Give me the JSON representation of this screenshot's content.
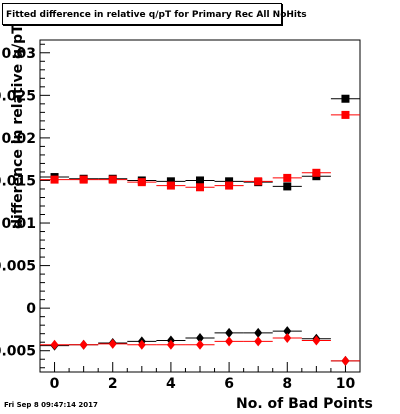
{
  "title": "Fitted difference in relative q/pT for Primary Rec All NoHits",
  "timestamp": "Fri Sep  8 09:47:14 2017",
  "chart_data": {
    "type": "scatter",
    "title": "Fitted difference in relative q/pT for Primary Rec All NoHits",
    "xlabel": "No. of Bad Points",
    "ylabel": "difference in relative q/pT",
    "xlim": [
      -0.5,
      10.5
    ],
    "ylim": [
      -0.0075,
      0.0315
    ],
    "x_ticks": [
      "0",
      "2",
      "4",
      "6",
      "8",
      "10"
    ],
    "y_ticks": [
      "-0.005",
      "0",
      "0.005",
      "0.01",
      "0.015",
      "0.02",
      "0.025",
      "0.03"
    ],
    "grid": false,
    "legend": "none",
    "series": [
      {
        "marker": "square",
        "color": "#000000",
        "x": [
          0,
          1,
          2,
          3,
          4,
          5,
          6,
          7,
          8,
          9,
          10
        ],
        "y": [
          0.0154,
          0.0152,
          0.0152,
          0.015,
          0.0149,
          0.015,
          0.0149,
          0.0148,
          0.0143,
          0.0155,
          0.0246
        ]
      },
      {
        "marker": "square",
        "color": "#ff0000",
        "x": [
          0,
          1,
          2,
          3,
          4,
          5,
          6,
          7,
          8,
          9,
          10
        ],
        "y": [
          0.0151,
          0.0151,
          0.0151,
          0.0148,
          0.0144,
          0.0142,
          0.0144,
          0.0149,
          0.0153,
          0.0159,
          0.0227
        ]
      },
      {
        "marker": "diamond",
        "color": "#000000",
        "x": [
          0,
          1,
          2,
          3,
          4,
          5,
          6,
          7,
          8,
          9,
          10
        ],
        "y": [
          -0.0044,
          -0.0043,
          -0.0041,
          -0.0039,
          -0.0038,
          -0.0035,
          -0.0029,
          -0.0029,
          -0.0027,
          -0.0036,
          -0.0062
        ]
      },
      {
        "marker": "diamond",
        "color": "#ff0000",
        "x": [
          0,
          1,
          2,
          3,
          4,
          5,
          6,
          7,
          8,
          9,
          10
        ],
        "y": [
          -0.0043,
          -0.0043,
          -0.0042,
          -0.0043,
          -0.0043,
          -0.0043,
          -0.0039,
          -0.0039,
          -0.0035,
          -0.0038,
          -0.0062
        ]
      }
    ]
  }
}
